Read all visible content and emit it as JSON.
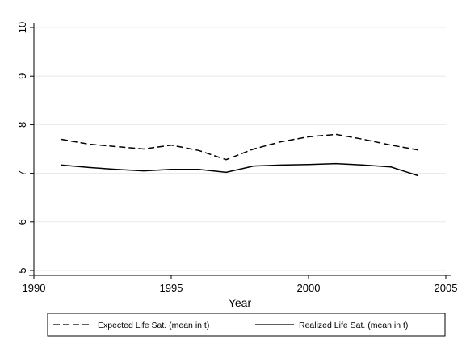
{
  "chart_data": {
    "type": "line",
    "title": "",
    "xlabel": "Year",
    "ylabel": "",
    "xlim": [
      1990,
      2005
    ],
    "ylim": [
      5,
      10
    ],
    "xticks": [
      1990,
      1995,
      2000,
      2005
    ],
    "yticks": [
      5,
      6,
      7,
      8,
      9,
      10
    ],
    "grid": true,
    "legend_position": "bottom",
    "series": [
      {
        "name": "Expected Life Sat. (mean in t)",
        "style": "dashed",
        "color": "#000000",
        "x": [
          1991,
          1992,
          1993,
          1994,
          1995,
          1996,
          1997,
          1998,
          1999,
          2000,
          2001,
          2002,
          2003,
          2004
        ],
        "y": [
          7.7,
          7.6,
          7.55,
          7.5,
          7.58,
          7.47,
          7.28,
          7.5,
          7.65,
          7.75,
          7.8,
          7.7,
          7.58,
          7.48
        ]
      },
      {
        "name": "Realized Life Sat. (mean in t)",
        "style": "solid",
        "color": "#000000",
        "x": [
          1991,
          1992,
          1993,
          1994,
          1995,
          1996,
          1997,
          1998,
          1999,
          2000,
          2001,
          2002,
          2003,
          2004
        ],
        "y": [
          7.17,
          7.12,
          7.08,
          7.05,
          7.08,
          7.08,
          7.02,
          7.15,
          7.17,
          7.18,
          7.2,
          7.17,
          7.13,
          6.95
        ]
      }
    ]
  }
}
